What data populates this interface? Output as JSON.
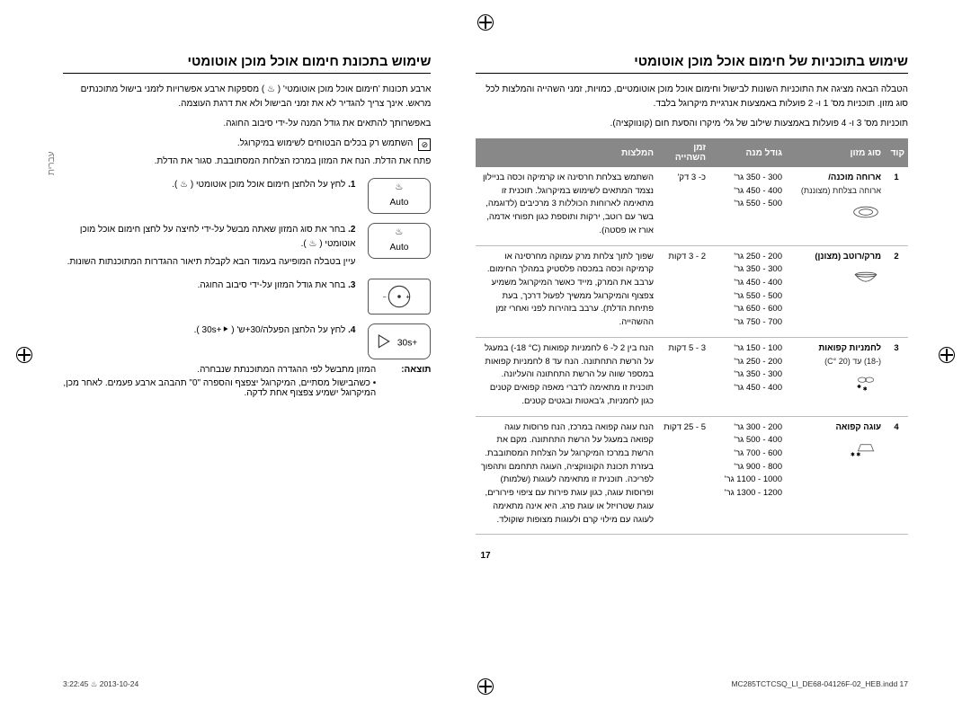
{
  "colors": {
    "header_bg": "#888888",
    "header_fg": "#ffffff",
    "border": "#bbbbbb",
    "text": "#000000",
    "side_label": "#777777"
  },
  "right": {
    "title": "שימוש בתכונת חימום אוכל מוכן אוטומטי",
    "intro1": "ארבע תכונות 'חימום אוכל מוכן אוטומטי' ( ♨ ) מספקות ארבע אפשרויות לזמני בישול מתוכנתים מראש. אינך צריך להגדיר לא את זמני הבישול ולא את דרגת העוצמה.",
    "intro2": "באפשרותך להתאים את גודל המנה על-ידי סיבוב החוגה.",
    "safe_icon_note": "השתמש רק בכלים הבטוחים לשימוש במיקרוגל.",
    "open_door": "פתח את הדלת. הנח את המזון במרכז הצלחת המסתובבת. סגור את הדלת.",
    "steps": [
      {
        "n": "1.",
        "text": "לחץ על הלחצן חימום אוכל מוכן אוטומטי ( ♨ ).",
        "icon": "auto-heat"
      },
      {
        "n": "2.",
        "text": "בחר את סוג המזון שאתה מבשל על-ידי לחיצה על לחצן חימום אוכל מוכן אוטומטי ( ♨ ).",
        "after": "עיין בטבלה המופיעה בעמוד הבא לקבלת תיאור ההגדרות המתוכנתות השונות.",
        "icon": "auto-heat"
      },
      {
        "n": "3.",
        "text": "בחר את גודל המזון על-ידי סיבוב החוגה.",
        "icon": "dial"
      },
      {
        "n": "4.",
        "text": "לחץ על הלחצן הפעלה/30+ש' ( ⯈+30s ).",
        "icon": "start"
      }
    ],
    "result_label": "תוצאה:",
    "result_text": "המזון מתבשל לפי ההגדרה המתוכנתת שנבחרה.",
    "result_bullets": "• כשהבישול מסתיים, המיקרוגל יצפצף והספרה \"0\" תהבהב ארבע פעמים. לאחר מכן, המיקרוגל ישמיע צפצוף אחת לדקה."
  },
  "left": {
    "title": "שימוש בתוכניות של חימום אוכל מוכן אוטומטי",
    "intro1": "הטבלה הבאה מציגה את התוכניות השונות לבישול וחימום אוכל מוכן אוטומטיים, כמויות, זמני השהייה והמלצות לכל סוג מזון. תוכניות מס' 1 ו- 2 פועלות באמצעות אנרגיית מיקרוגל בלבד.",
    "intro2": "תוכניות מס' 3 ו- 4 פועלות באמצעות שילוב של גלי מיקרו והסעת חום (קונווקציה).",
    "headers": {
      "code": "קוד",
      "type": "סוג מזון",
      "size": "גודל מנה",
      "time": "זמן השהייה",
      "tips": "המלצות"
    },
    "rows": [
      {
        "code": "1",
        "type": "ארוחה מוכנה/",
        "subtype": "ארוחה בצלחת (מצוננת)",
        "icon": "plate",
        "sizes": [
          "300 - 350 גר'",
          "400 - 450 גר'",
          "500 - 550 גר'"
        ],
        "time": "כ- 3 דק'",
        "tips": "השתמש בצלחת חרסינה או קרמיקה וכסה בניילון נצמד המתאים לשימוש במיקרוגל. תוכנית זו מתאימה לארוחות הכוללות 3 מרכיבים (לדוגמה, בשר עם רוטב, ירקות ותוספת כגון תפוחי אדמה, אורז או פסטה)."
      },
      {
        "code": "2",
        "type": "מרק/רוטב (מצונן)",
        "icon": "bowl",
        "sizes": [
          "200 - 250 גר'",
          "300 - 350 גר'",
          "400 - 450 גר'",
          "500 - 550 גר'",
          "600 - 650 גר'",
          "700 - 750 גר'"
        ],
        "time": "2 - 3 דקות",
        "tips": "שפוך לתוך צלחת מרק עמוקה מחרסינה או קרמיקה וכסה במכסה פלסטיק במהלך החימום. ערבב את המרק, מייד כאשר המיקרוגל משמיע צפצוף והמיקרוגל ממשיך לפעול דרכך, בעת פתיחת הדלת). ערבב בזהירות לפני ואחרי זמן ההשהייה."
      },
      {
        "code": "3",
        "type": "לחמניות קפואות",
        "subtype": "(-18)    עד    (20 °C)",
        "icon": "bread",
        "sizes": [
          "100 - 150 גר'",
          "200 - 250 גר'",
          "300 - 350 גר'",
          "400 - 450 גר'"
        ],
        "time": "3 - 5 דקות",
        "tips": "הנח בין 2 ל- 6 לחמניות קפואות (‎-18 °C‎) במעגל על הרשת התחתונה. הנח עד 8 לחמניות קפואות במספר שווה על הרשת התחתונה והעליונה. תוכנית זו מתאימה לדברי מאפה קפואים קטנים כגון לחמניות, ג'באטות ובגטים קטנים."
      },
      {
        "code": "4",
        "type": "עוגה קפואה",
        "icon": "cake",
        "sizes": [
          "200 - 300 גר'",
          "400 - 500 גר'",
          "600 - 700 גר'",
          "800 - 900 גר'",
          "1000 - 1100 גר'",
          "1200 - 1300 גר'"
        ],
        "time": "5 - 25 דקות",
        "tips": "הנח עוגה קפואה במרכז, הנח פרוסות עוגה קפואה במעגל על הרשת התחתונה. מקם את הרשת במרכז המיקרוגל על הצלחת המסתובבת. בעזרת תכונת הקונווקציה, העוגה תתחמם ותהפוך לפריכה. תוכנית זו מתאימה לעוגות (שלמות) ופרוסות עוגה, כגון עוגת פירות עם ציפוי פירורים, עוגת שטרויזל או עוגת פרג. היא אינה מתאימה לעוגה עם מילוי קרם ולעוגות מצופות שוקולד."
      }
    ]
  },
  "side_label": "עברית",
  "page_number": "17",
  "footer_left": "MC285TCTCSQ_LI_DE68-04126F-02_HEB.indd   17",
  "footer_right": "2013-10-24   ♨ 3:22:45"
}
